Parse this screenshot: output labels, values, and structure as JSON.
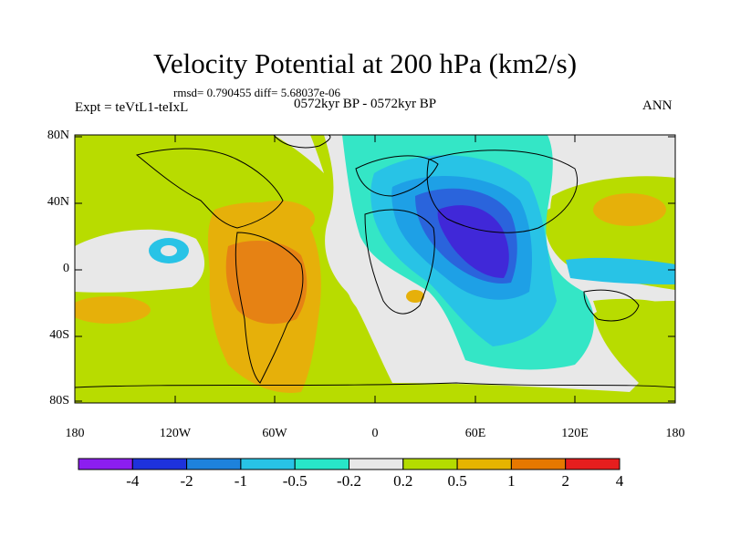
{
  "title": "Velocity Potential at 200 hPa (km2/s)",
  "stats": "rmsd= 0.790455 diff= 5.68037e-06",
  "left_label": "Expt = teVtL1-teIxL",
  "center_label": "0572kyr BP - 0572kyr BP",
  "right_label": "ANN",
  "lat_ticks": [
    "80N",
    "40N",
    "0",
    "40S",
    "80S"
  ],
  "lon_ticks": [
    "180",
    "120W",
    "60W",
    "0",
    "60E",
    "120E",
    "180"
  ],
  "colorbar": {
    "labels": [
      "-4",
      "-2",
      "-1",
      "-0.5",
      "-0.2",
      "0.2",
      "0.5",
      "1",
      "2",
      "4"
    ],
    "colors": [
      "#8c1ef0",
      "#1e32dc",
      "#1e82dc",
      "#28c3e6",
      "#28e6c8",
      "#e8e8e8",
      "#b4dc00",
      "#e6b400",
      "#e67800",
      "#e61e1e"
    ]
  },
  "colors": {
    "neg4": "#4028d8",
    "neg2": "#2a64dc",
    "neg1": "#1ea0e6",
    "neg05": "#2ad2e6",
    "neg02": "#34e6c6",
    "neutral": "#e8e8e8",
    "pos02": "#b8dc00",
    "pos05": "#e6b00a",
    "pos1": "#e68214"
  }
}
